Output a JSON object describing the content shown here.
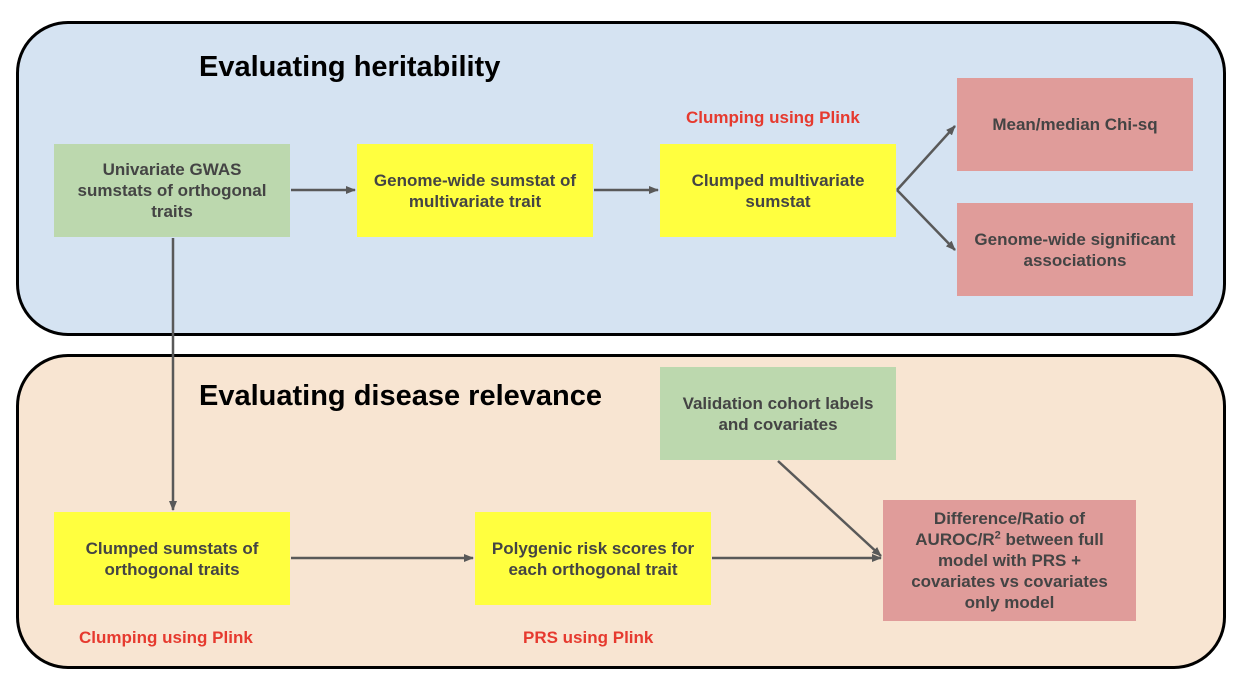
{
  "sections": {
    "heritability_title": "Evaluating heritability",
    "disease_title": "Evaluating disease relevance"
  },
  "nodes": {
    "univariate_gwas": "Univariate GWAS sumstats of orthogonal traits",
    "genome_wide_sumstat": "Genome-wide sumstat of multivariate trait",
    "clumped_multivariate": "Clumped multivariate sumstat",
    "mean_median_chisq": "Mean/median Chi-sq",
    "genome_wide_significant": "Genome-wide significant associations",
    "validation_cohort": "Validation cohort labels and covariates",
    "clumped_orthogonal": "Clumped sumstats of orthogonal traits",
    "polygenic_risk_scores": "Polygenic risk scores for each orthogonal trait",
    "auroc_ratio_prefix": "Difference/Ratio of AUROC/R",
    "auroc_ratio_sup": "2",
    "auroc_ratio_suffix": " between full model with PRS + covariates vs covariates only model"
  },
  "notes": {
    "clumping_top": "Clumping using Plink",
    "clumping_bottom": "Clumping using Plink",
    "prs_bottom": "PRS using Plink"
  },
  "colors": {
    "heritability_panel": "#d5e3f2",
    "disease_panel": "#f8e5d2",
    "input_box": "#bcd8ae",
    "intermediate_box": "#ffff3f",
    "output_box": "#e09c9a",
    "note_text": "#e63a2f",
    "arrow": "#595959"
  }
}
